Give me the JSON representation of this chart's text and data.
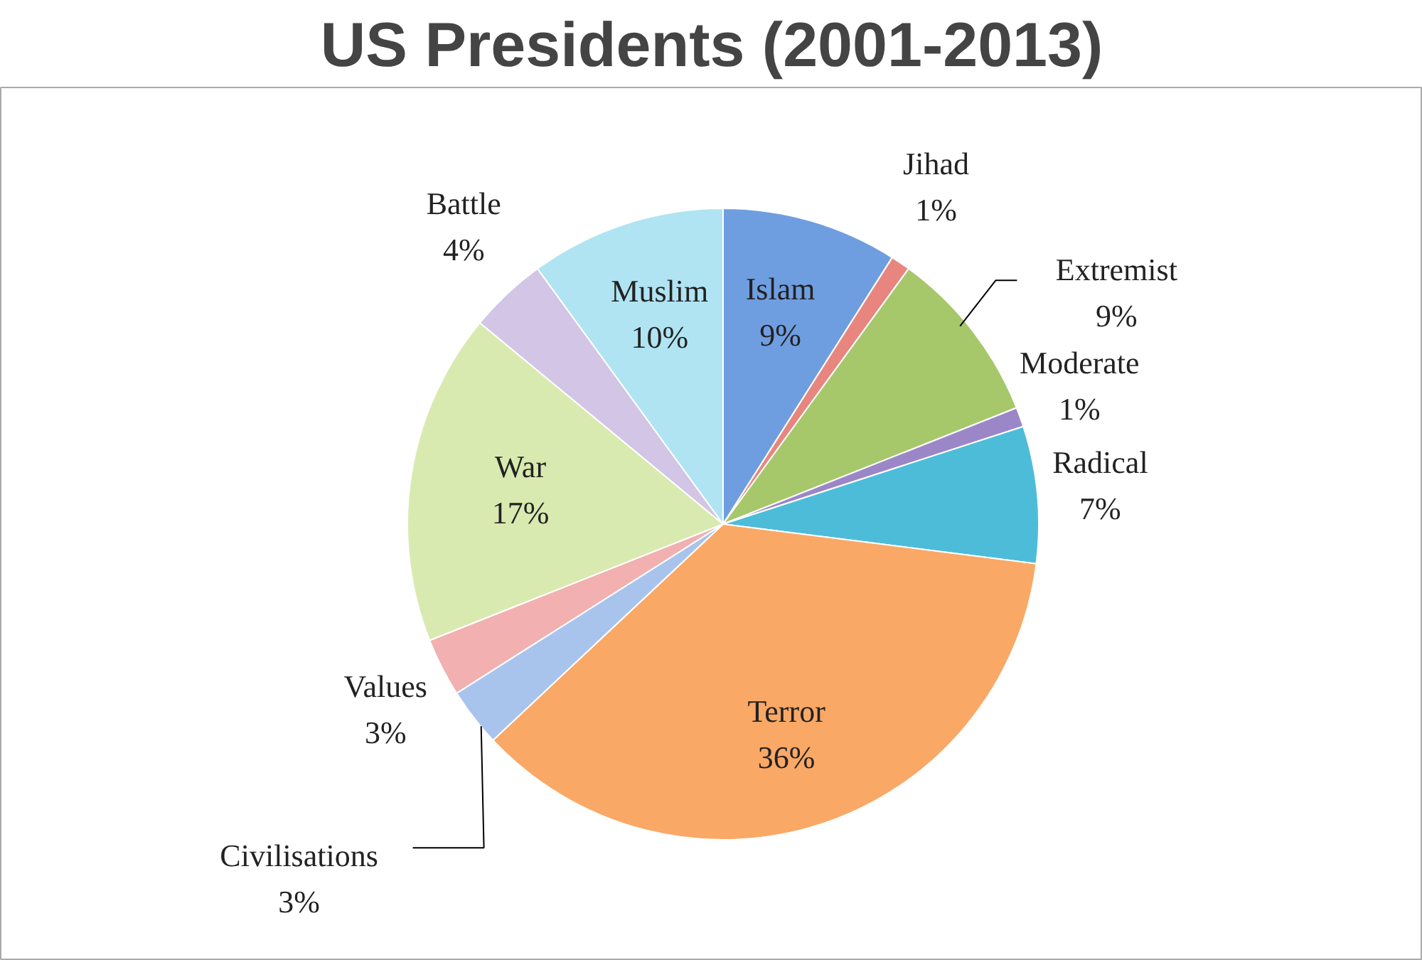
{
  "chart_data": {
    "type": "pie",
    "title": "US Presidents (2001-2013)",
    "categories": [
      "Islam",
      "Jihad",
      "Extremist",
      "Moderate",
      "Radical",
      "Terror",
      "Civilisations",
      "Values",
      "War",
      "Battle",
      "Muslim"
    ],
    "values": [
      9,
      1,
      9,
      1,
      7,
      36,
      3,
      3,
      17,
      4,
      10
    ],
    "value_labels": [
      "9%",
      "1%",
      "9%",
      "1%",
      "7%",
      "36%",
      "3%",
      "3%",
      "17%",
      "4%",
      "10%"
    ],
    "colors": [
      "#6f9ee0",
      "#e8857f",
      "#a6c86a",
      "#9b87c8",
      "#4dbcd9",
      "#f9a866",
      "#a9c4ec",
      "#f2b0b0",
      "#d9eab0",
      "#d2c5e6",
      "#b0e4f2"
    ]
  }
}
